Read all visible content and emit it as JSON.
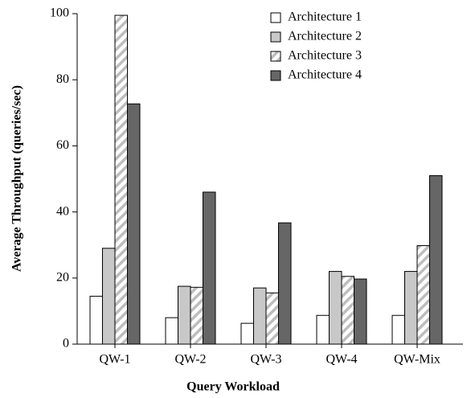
{
  "chart_data": {
    "type": "bar",
    "xlabel": "Query Workload",
    "ylabel": "Average Throughput (queries/sec)",
    "categories": [
      "QW-1",
      "QW-2",
      "QW-3",
      "QW-4",
      "QW-Mix"
    ],
    "series": [
      {
        "name": "Architecture 1",
        "color": "#ffffff",
        "values": [
          14.5,
          8,
          6.3,
          8.7,
          8.7
        ]
      },
      {
        "name": "Architecture 2",
        "color": "#c8c8c8",
        "values": [
          29,
          17.5,
          17,
          22,
          22
        ]
      },
      {
        "name": "Architecture 3",
        "color": "hatch",
        "values": [
          99.5,
          17.2,
          15.5,
          20.5,
          29.8
        ]
      },
      {
        "name": "Architecture 4",
        "color": "#666666",
        "values": [
          72.7,
          46,
          36.7,
          19.7,
          51
        ]
      }
    ],
    "ylim": [
      0,
      100
    ],
    "yticks": [
      0,
      20,
      40,
      60,
      80,
      100
    ],
    "grid": false,
    "legend": "upper right"
  }
}
